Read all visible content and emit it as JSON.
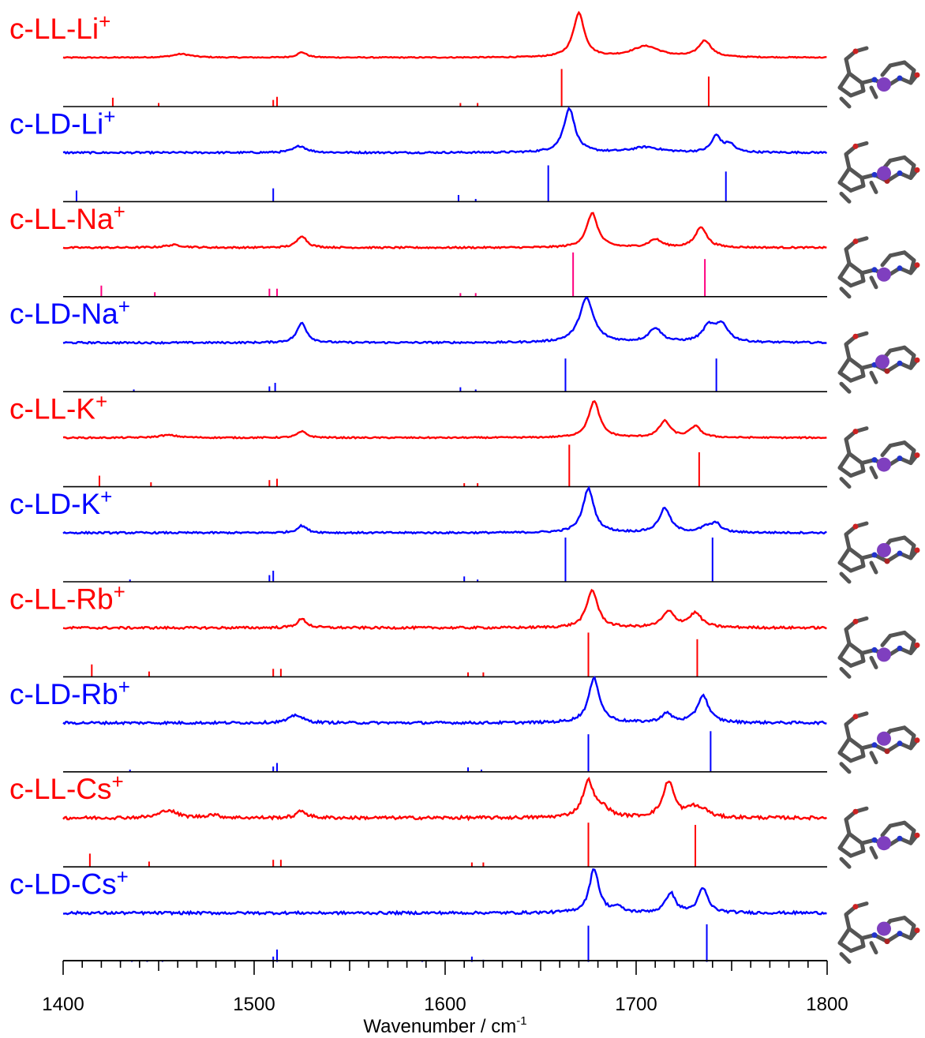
{
  "colors": {
    "LL": "#ff0000",
    "LD": "#0000ff",
    "stick_LL_Na": "#ff007f",
    "atom": "#7f3fbf"
  },
  "chart_data": {
    "type": "line",
    "title": "",
    "xlabel": "Wavenumber / cm",
    "xlabel_sup": "-1",
    "ylabel": "",
    "xlim": [
      1400,
      1800
    ],
    "xticks_major": [
      1400,
      1500,
      1600,
      1700,
      1800
    ],
    "grid": false,
    "legend": "none",
    "series": [
      {
        "name": "c-LL-Li",
        "ion": "+",
        "family": "LL",
        "peaks": [
          [
            1462,
            0.08,
            6
          ],
          [
            1525,
            0.12,
            3
          ],
          [
            1670,
            1.0,
            3.5
          ],
          [
            1705,
            0.25,
            9
          ],
          [
            1736,
            0.37,
            4
          ]
        ],
        "noise": 0.012,
        "sticks": [
          [
            1426,
            0.2
          ],
          [
            1450,
            0.08
          ],
          [
            1510,
            0.15
          ],
          [
            1512,
            0.22
          ],
          [
            1608,
            0.08
          ],
          [
            1617,
            0.08
          ],
          [
            1661,
            0.85
          ],
          [
            1738,
            0.68
          ]
        ]
      },
      {
        "name": "c-LD-Li",
        "ion": "+",
        "family": "LD",
        "peaks": [
          [
            1524,
            0.15,
            4
          ],
          [
            1665,
            1.0,
            3.5
          ],
          [
            1705,
            0.12,
            9
          ],
          [
            1742,
            0.37,
            3
          ],
          [
            1749,
            0.18,
            3
          ]
        ],
        "noise": 0.02,
        "sticks": [
          [
            1407,
            0.25
          ],
          [
            1510,
            0.3
          ],
          [
            1607,
            0.15
          ],
          [
            1616,
            0.06
          ],
          [
            1654,
            0.82
          ],
          [
            1747,
            0.68
          ]
        ]
      },
      {
        "name": "c-LL-Na",
        "ion": "+",
        "family": "LL",
        "peaks": [
          [
            1458,
            0.06,
            6
          ],
          [
            1525,
            0.27,
            3
          ],
          [
            1677,
            0.78,
            3.5
          ],
          [
            1710,
            0.18,
            4
          ],
          [
            1734,
            0.47,
            3.5
          ]
        ],
        "noise": 0.018,
        "sticks": [
          [
            1420,
            0.25
          ],
          [
            1448,
            0.1
          ],
          [
            1508,
            0.18
          ],
          [
            1512,
            0.18
          ],
          [
            1608,
            0.08
          ],
          [
            1616,
            0.08
          ],
          [
            1667,
            1.0
          ],
          [
            1736,
            0.85
          ]
        ],
        "stick_color": "stick_LL_Na"
      },
      {
        "name": "c-LD-Na",
        "ion": "+",
        "family": "LD",
        "peaks": [
          [
            1525,
            0.45,
            3
          ],
          [
            1674,
            1.0,
            4.5
          ],
          [
            1710,
            0.32,
            4
          ],
          [
            1738,
            0.35,
            4
          ],
          [
            1745,
            0.38,
            4
          ]
        ],
        "noise": 0.02,
        "sticks": [
          [
            1437,
            0.05
          ],
          [
            1508,
            0.12
          ],
          [
            1511,
            0.2
          ],
          [
            1608,
            0.1
          ],
          [
            1616,
            0.05
          ],
          [
            1663,
            0.75
          ],
          [
            1742,
            0.75
          ]
        ]
      },
      {
        "name": "c-LL-K",
        "ion": "+",
        "family": "LL",
        "peaks": [
          [
            1455,
            0.06,
            6
          ],
          [
            1525,
            0.14,
            3
          ],
          [
            1678,
            0.82,
            3.5
          ],
          [
            1715,
            0.37,
            3.5
          ],
          [
            1731,
            0.25,
            3.5
          ]
        ],
        "noise": 0.015,
        "sticks": [
          [
            1419,
            0.25
          ],
          [
            1446,
            0.1
          ],
          [
            1508,
            0.15
          ],
          [
            1512,
            0.18
          ],
          [
            1610,
            0.08
          ],
          [
            1617,
            0.08
          ],
          [
            1665,
            0.95
          ],
          [
            1733,
            0.78
          ]
        ]
      },
      {
        "name": "c-LD-K",
        "ion": "+",
        "family": "LD",
        "peaks": [
          [
            1525,
            0.16,
            3
          ],
          [
            1675,
            1.0,
            3.5
          ],
          [
            1715,
            0.55,
            3.5
          ],
          [
            1737,
            0.12,
            4
          ],
          [
            1742,
            0.18,
            3
          ]
        ],
        "noise": 0.02,
        "sticks": [
          [
            1435,
            0.05
          ],
          [
            1508,
            0.15
          ],
          [
            1510,
            0.25
          ],
          [
            1610,
            0.12
          ],
          [
            1617,
            0.05
          ],
          [
            1663,
            1.0
          ],
          [
            1740,
            1.0
          ]
        ]
      },
      {
        "name": "c-LL-Rb",
        "ion": "+",
        "family": "LL",
        "peaks": [
          [
            1525,
            0.2,
            3
          ],
          [
            1677,
            0.85,
            3.5
          ],
          [
            1717,
            0.35,
            4
          ],
          [
            1731,
            0.32,
            4
          ]
        ],
        "noise": 0.025,
        "sticks": [
          [
            1415,
            0.28
          ],
          [
            1445,
            0.12
          ],
          [
            1510,
            0.18
          ],
          [
            1514,
            0.18
          ],
          [
            1612,
            0.1
          ],
          [
            1620,
            0.1
          ],
          [
            1675,
            1.0
          ],
          [
            1732,
            0.85
          ]
        ]
      },
      {
        "name": "c-LD-Rb",
        "ion": "+",
        "family": "LD",
        "peaks": [
          [
            1522,
            0.18,
            4
          ],
          [
            1678,
            1.0,
            3.5
          ],
          [
            1716,
            0.2,
            3.5
          ],
          [
            1735,
            0.62,
            3.5
          ]
        ],
        "noise": 0.028,
        "sticks": [
          [
            1435,
            0.05
          ],
          [
            1510,
            0.12
          ],
          [
            1512,
            0.2
          ],
          [
            1612,
            0.1
          ],
          [
            1619,
            0.05
          ],
          [
            1675,
            0.85
          ],
          [
            1739,
            0.92
          ]
        ]
      },
      {
        "name": "c-LL-Cs",
        "ion": "+",
        "family": "LL",
        "peaks": [
          [
            1455,
            0.18,
            5
          ],
          [
            1478,
            0.07,
            4
          ],
          [
            1525,
            0.16,
            3
          ],
          [
            1675,
            0.82,
            3.5
          ],
          [
            1683,
            0.18,
            4
          ],
          [
            1717,
            0.82,
            3.5
          ],
          [
            1730,
            0.22,
            4
          ],
          [
            1736,
            0.12,
            3
          ]
        ],
        "noise": 0.035,
        "sticks": [
          [
            1414,
            0.3
          ],
          [
            1445,
            0.12
          ],
          [
            1510,
            0.16
          ],
          [
            1514,
            0.16
          ],
          [
            1614,
            0.1
          ],
          [
            1620,
            0.1
          ],
          [
            1675,
            1.0
          ],
          [
            1731,
            0.95
          ]
        ]
      },
      {
        "name": "c-LD-Cs",
        "ion": "+",
        "family": "LD",
        "peaks": [
          [
            1678,
            1.0,
            3
          ],
          [
            1690,
            0.12,
            3
          ],
          [
            1718,
            0.45,
            3
          ],
          [
            1735,
            0.55,
            3
          ]
        ],
        "noise": 0.03,
        "sticks": [
          [
            1430,
            0.03
          ],
          [
            1436,
            0.04
          ],
          [
            1444,
            0.03
          ],
          [
            1452,
            0.03
          ],
          [
            1510,
            0.12
          ],
          [
            1512,
            0.28
          ],
          [
            1588,
            0.04
          ],
          [
            1614,
            0.12
          ],
          [
            1620,
            0.05
          ],
          [
            1675,
            0.82
          ],
          [
            1737,
            0.85
          ]
        ]
      }
    ]
  },
  "structures": [
    {
      "atom_dx": 62,
      "atom_dy": 52
    },
    {
      "atom_dx": 62,
      "atom_dy": 44
    },
    {
      "atom_dx": 62,
      "atom_dy": 52
    },
    {
      "atom_dx": 60,
      "atom_dy": 42
    },
    {
      "atom_dx": 62,
      "atom_dy": 52
    },
    {
      "atom_dx": 62,
      "atom_dy": 40
    },
    {
      "atom_dx": 62,
      "atom_dy": 52
    },
    {
      "atom_dx": 62,
      "atom_dy": 38
    },
    {
      "atom_dx": 62,
      "atom_dy": 50
    },
    {
      "atom_dx": 62,
      "atom_dy": 38
    }
  ]
}
